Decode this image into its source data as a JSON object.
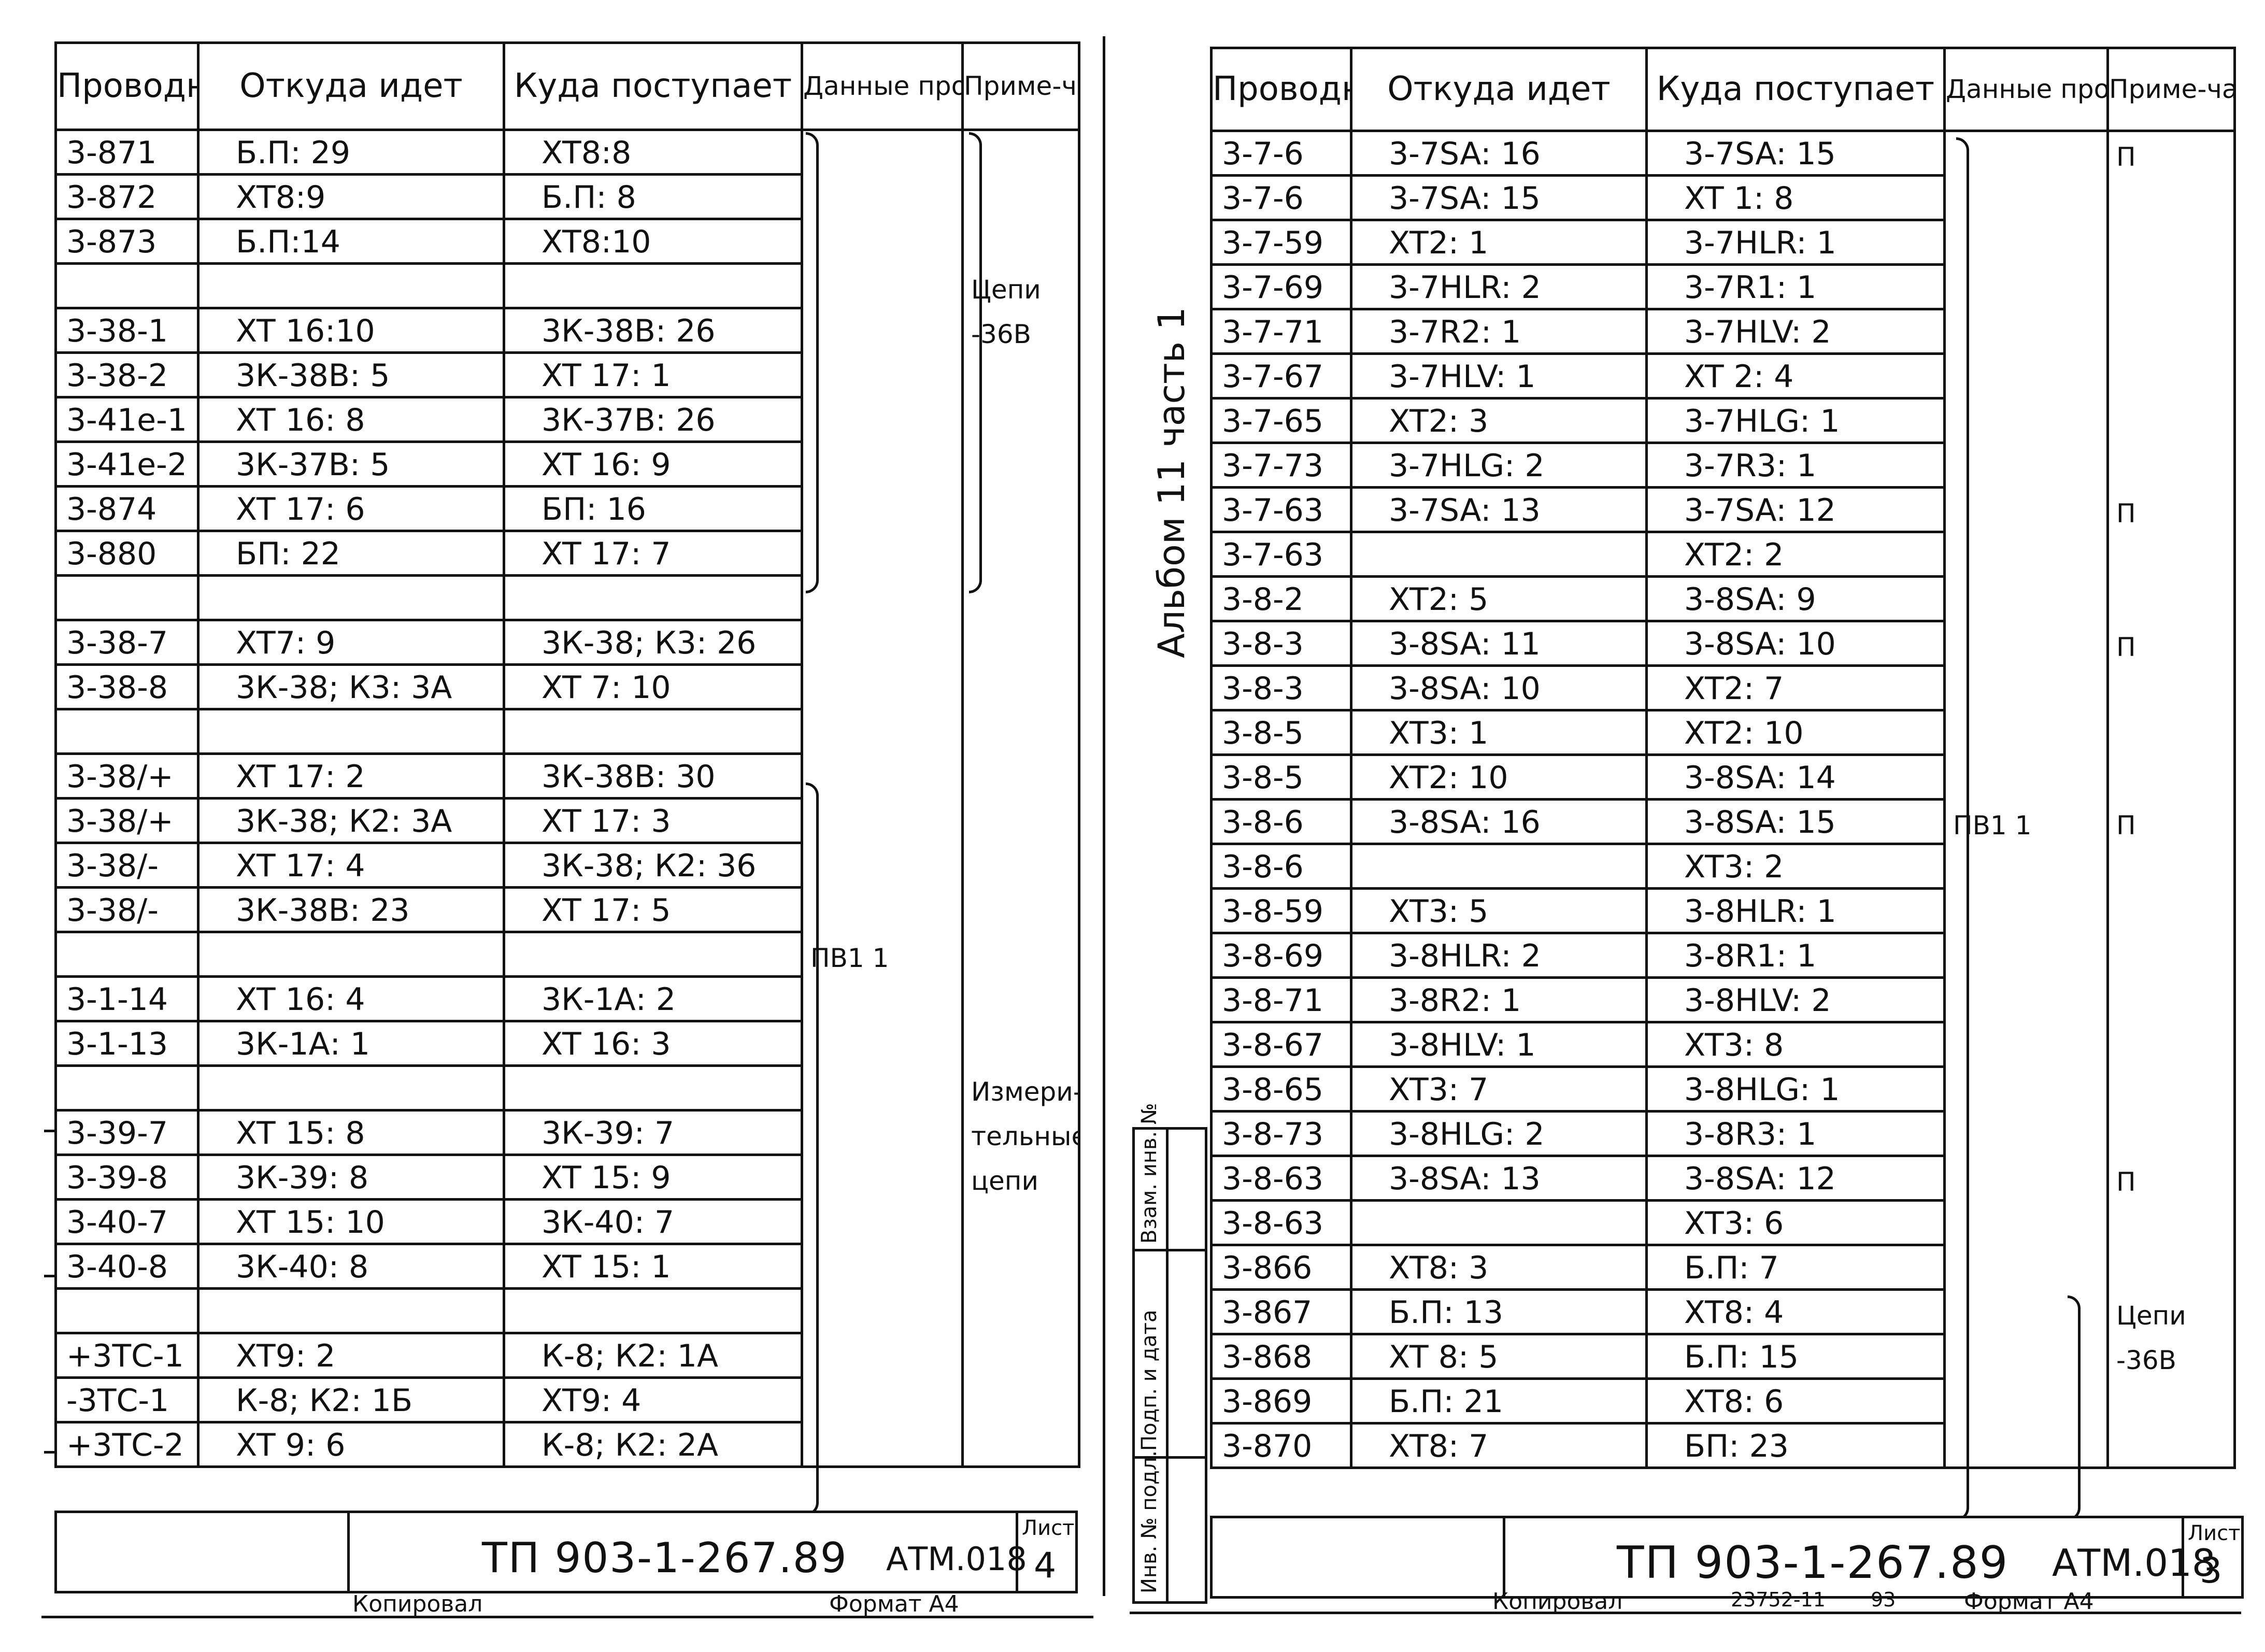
{
  "headers": {
    "wire": "Проводник",
    "from": "Откуда идет",
    "to": "Куда поступает",
    "data": "Данные провода",
    "note": "Приме-чание"
  },
  "left_sheet": {
    "rows": [
      {
        "wire": "3-871",
        "from": "Б.П: 29",
        "to": "XT8:8",
        "data": "",
        "note": ""
      },
      {
        "wire": "3-872",
        "from": "XT8:9",
        "to": "Б.П: 8",
        "data": "",
        "note": ""
      },
      {
        "wire": "3-873",
        "from": "Б.П:14",
        "to": "XT8:10",
        "data": "",
        "note": ""
      },
      {
        "wire": "",
        "from": "",
        "to": "",
        "data": "",
        "note": "Цепи"
      },
      {
        "wire": "3-38-1",
        "from": "XT 16:10",
        "to": "3К-38В: 26",
        "data": "",
        "note": "-36В"
      },
      {
        "wire": "3-38-2",
        "from": "3К-38В: 5",
        "to": "XT 17: 1",
        "data": "",
        "note": ""
      },
      {
        "wire": "3-41е-1",
        "from": "XT 16: 8",
        "to": "3К-37В: 26",
        "data": "",
        "note": ""
      },
      {
        "wire": "3-41е-2",
        "from": "3К-37В: 5",
        "to": "XT 16: 9",
        "data": "",
        "note": ""
      },
      {
        "wire": "3-874",
        "from": "XT 17: 6",
        "to": "БП: 16",
        "data": "",
        "note": ""
      },
      {
        "wire": "3-880",
        "from": "БП: 22",
        "to": "XT 17: 7",
        "data": "",
        "note": ""
      },
      {
        "wire": "",
        "from": "",
        "to": "",
        "data": "",
        "note": ""
      },
      {
        "wire": "3-38-7",
        "from": "XT7: 9",
        "to": "3К-38; К3: 26",
        "data": "",
        "note": ""
      },
      {
        "wire": "3-38-8",
        "from": "3К-38; К3: 3А",
        "to": "XT 7: 10",
        "data": "",
        "note": ""
      },
      {
        "wire": "",
        "from": "",
        "to": "",
        "data": "",
        "note": ""
      },
      {
        "wire": "3-38/+",
        "from": "XT 17: 2",
        "to": "3К-38В: 30",
        "data": "",
        "note": ""
      },
      {
        "wire": "3-38/+",
        "from": "3К-38; К2: 3А",
        "to": "XT 17: 3",
        "data": "",
        "note": ""
      },
      {
        "wire": "3-38/-",
        "from": "XT 17: 4",
        "to": "3К-38; К2: 36",
        "data": "",
        "note": ""
      },
      {
        "wire": "3-38/-",
        "from": "3К-38В: 23",
        "to": "XT 17: 5",
        "data": "",
        "note": ""
      },
      {
        "wire": "",
        "from": "",
        "to": "",
        "data": "ПВ1 1",
        "note": ""
      },
      {
        "wire": "3-1-14",
        "from": "XT 16: 4",
        "to": "3К-1А: 2",
        "data": "",
        "note": ""
      },
      {
        "wire": "3-1-13",
        "from": "3К-1А: 1",
        "to": "XT 16: 3",
        "data": "",
        "note": ""
      },
      {
        "wire": "",
        "from": "",
        "to": "",
        "data": "",
        "note": "Измери-"
      },
      {
        "wire": "3-39-7",
        "from": "XT 15: 8",
        "to": "3К-39: 7",
        "data": "",
        "note": "тельные"
      },
      {
        "wire": "3-39-8",
        "from": "3К-39: 8",
        "to": "XT 15: 9",
        "data": "",
        "note": "цепи"
      },
      {
        "wire": "3-40-7",
        "from": "XT 15: 10",
        "to": "3К-40: 7",
        "data": "",
        "note": ""
      },
      {
        "wire": "3-40-8",
        "from": "3К-40: 8",
        "to": "XT 15: 1",
        "data": "",
        "note": ""
      },
      {
        "wire": "",
        "from": "",
        "to": "",
        "data": "",
        "note": ""
      },
      {
        "wire": "+3ТС-1",
        "from": "XT9: 2",
        "to": "К-8; К2: 1А",
        "data": "",
        "note": ""
      },
      {
        "wire": "-3ТС-1",
        "from": "К-8; К2: 1Б",
        "to": "XT9: 4",
        "data": "",
        "note": ""
      },
      {
        "wire": "+3ТС-2",
        "from": "XT 9: 6",
        "to": "К-8; К2: 2А",
        "data": "",
        "note": ""
      }
    ],
    "stamp": {
      "code": "ТП 903-1-267.89",
      "doc": "АТМ.018",
      "sheet_label": "Лист",
      "sheet_no": "4"
    },
    "footer": {
      "copied": "Копировал",
      "format": "Формат А4"
    }
  },
  "right_sheet": {
    "rows": [
      {
        "wire": "3-7-6",
        "from": "3-7SA: 16",
        "to": "3-7SA: 15",
        "data": "",
        "note": "П"
      },
      {
        "wire": "3-7-6",
        "from": "3-7SA: 15",
        "to": "XT 1: 8",
        "data": "",
        "note": ""
      },
      {
        "wire": "3-7-59",
        "from": "XT2: 1",
        "to": "3-7HLR: 1",
        "data": "",
        "note": ""
      },
      {
        "wire": "3-7-69",
        "from": "3-7HLR: 2",
        "to": "3-7R1: 1",
        "data": "",
        "note": ""
      },
      {
        "wire": "3-7-71",
        "from": "3-7R2: 1",
        "to": "3-7HLV: 2",
        "data": "",
        "note": ""
      },
      {
        "wire": "3-7-67",
        "from": "3-7HLV: 1",
        "to": "XT 2: 4",
        "data": "",
        "note": ""
      },
      {
        "wire": "3-7-65",
        "from": "XT2: 3",
        "to": "3-7HLG: 1",
        "data": "",
        "note": ""
      },
      {
        "wire": "3-7-73",
        "from": "3-7HLG: 2",
        "to": "3-7R3: 1",
        "data": "",
        "note": ""
      },
      {
        "wire": "3-7-63",
        "from": "3-7SA: 13",
        "to": "3-7SA: 12",
        "data": "",
        "note": "П"
      },
      {
        "wire": "3-7-63",
        "from": "",
        "to": "XT2: 2",
        "data": "",
        "note": ""
      },
      {
        "wire": "3-8-2",
        "from": "XT2: 5",
        "to": "3-8SA: 9",
        "data": "",
        "note": ""
      },
      {
        "wire": "3-8-3",
        "from": "3-8SA: 11",
        "to": "3-8SA: 10",
        "data": "",
        "note": "П"
      },
      {
        "wire": "3-8-3",
        "from": "3-8SA: 10",
        "to": "XT2: 7",
        "data": "",
        "note": ""
      },
      {
        "wire": "3-8-5",
        "from": "XT3: 1",
        "to": "XT2: 10",
        "data": "",
        "note": ""
      },
      {
        "wire": "3-8-5",
        "from": "XT2: 10",
        "to": "3-8SA: 14",
        "data": "",
        "note": ""
      },
      {
        "wire": "3-8-6",
        "from": "3-8SA: 16",
        "to": "3-8SA: 15",
        "data": "ПВ1 1",
        "note": "П"
      },
      {
        "wire": "3-8-6",
        "from": "",
        "to": "XT3: 2",
        "data": "",
        "note": ""
      },
      {
        "wire": "3-8-59",
        "from": "XT3: 5",
        "to": "3-8HLR: 1",
        "data": "",
        "note": ""
      },
      {
        "wire": "3-8-69",
        "from": "3-8HLR: 2",
        "to": "3-8R1: 1",
        "data": "",
        "note": ""
      },
      {
        "wire": "3-8-71",
        "from": "3-8R2: 1",
        "to": "3-8HLV: 2",
        "data": "",
        "note": ""
      },
      {
        "wire": "3-8-67",
        "from": "3-8HLV: 1",
        "to": "XT3: 8",
        "data": "",
        "note": ""
      },
      {
        "wire": "3-8-65",
        "from": "XT3: 7",
        "to": "3-8HLG: 1",
        "data": "",
        "note": ""
      },
      {
        "wire": "3-8-73",
        "from": "3-8HLG: 2",
        "to": "3-8R3: 1",
        "data": "",
        "note": ""
      },
      {
        "wire": "3-8-63",
        "from": "3-8SA: 13",
        "to": "3-8SA: 12",
        "data": "",
        "note": "П"
      },
      {
        "wire": "3-8-63",
        "from": "",
        "to": "XT3: 6",
        "data": "",
        "note": ""
      },
      {
        "wire": "3-866",
        "from": "XT8: 3",
        "to": "Б.П: 7",
        "data": "",
        "note": ""
      },
      {
        "wire": "3-867",
        "from": "Б.П: 13",
        "to": "XT8: 4",
        "data": "",
        "note": "Цепи"
      },
      {
        "wire": "3-868",
        "from": "XT 8: 5",
        "to": "Б.П: 15",
        "data": "",
        "note": "-36В"
      },
      {
        "wire": "3-869",
        "from": "Б.П: 21",
        "to": "XT8: 6",
        "data": "",
        "note": ""
      },
      {
        "wire": "3-870",
        "from": "XT8: 7",
        "to": "БП: 23",
        "data": "",
        "note": ""
      }
    ],
    "album": "Альбом 11 часть 1",
    "side_labels": {
      "inv_orig": "Инв. № подл.",
      "sign_date": "Подп. и дата",
      "swap_inv": "Взам. инв. №"
    },
    "stamp": {
      "code": "ТП 903-1-267.89",
      "doc": "АТМ.018",
      "sheet_label": "Лист",
      "sheet_no": "3"
    },
    "footer": {
      "copied": "Копировал",
      "order": "23752-11",
      "page": "93",
      "format": "Формат А4"
    }
  }
}
